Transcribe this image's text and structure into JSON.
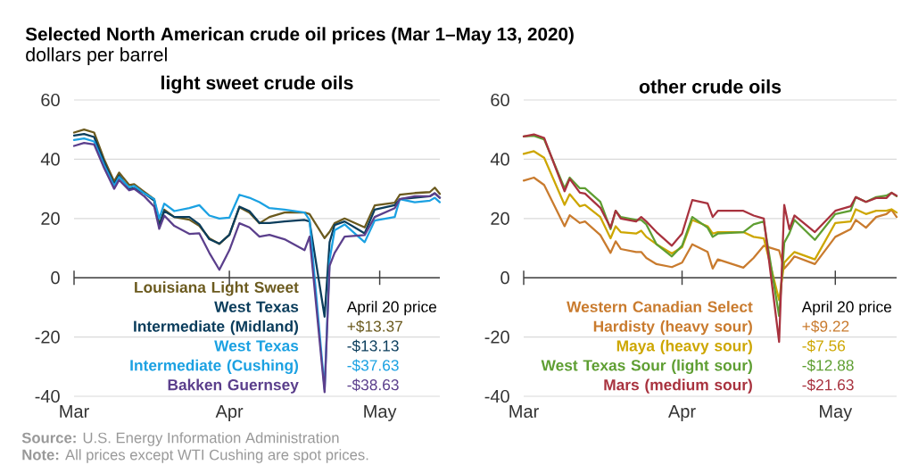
{
  "chart_data": [
    {
      "type": "line",
      "title": "light sweet crude oils",
      "ylabel": "dollars per barrel",
      "x": [
        "2020-03-01",
        "2020-03-03",
        "2020-03-05",
        "2020-03-07",
        "2020-03-09",
        "2020-03-10",
        "2020-03-12",
        "2020-03-13",
        "2020-03-15",
        "2020-03-17",
        "2020-03-18",
        "2020-03-19",
        "2020-03-21",
        "2020-03-24",
        "2020-03-26",
        "2020-03-28",
        "2020-03-30",
        "2020-04-01",
        "2020-04-03",
        "2020-04-05",
        "2020-04-07",
        "2020-04-09",
        "2020-04-12",
        "2020-04-16",
        "2020-04-17",
        "2020-04-20",
        "2020-04-21",
        "2020-04-22",
        "2020-04-24",
        "2020-04-28",
        "2020-04-30",
        "2020-05-04",
        "2020-05-05",
        "2020-05-08",
        "2020-05-11",
        "2020-05-12",
        "2020-05-13"
      ],
      "series": [
        {
          "name": "Louisiana Light Sweet",
          "color": "#6b5a1e",
          "values": [
            49,
            50,
            49,
            40,
            32.5,
            35.5,
            31.3,
            31.6,
            29,
            26.5,
            17.8,
            23,
            20.5,
            19.6,
            17.5,
            13.3,
            11.4,
            14.5,
            23.8,
            22,
            18.4,
            20.5,
            22,
            22,
            21.5,
            13.37,
            15.5,
            18.4,
            20,
            17,
            24.4,
            25.3,
            28,
            28.6,
            28.9,
            30.4,
            28.3
          ]
        },
        {
          "name": "West Texas Intermediate (Midland)",
          "color": "#0b3d5c",
          "values": [
            48,
            48.5,
            47.5,
            39,
            31.5,
            34.5,
            30,
            30.2,
            28.5,
            26,
            17.5,
            22.5,
            20.5,
            20.5,
            18,
            13,
            11.5,
            14.5,
            24,
            22.5,
            18.5,
            18.5,
            19,
            19.5,
            19,
            -13.13,
            12,
            17.8,
            19,
            15,
            23,
            24.5,
            26.5,
            27,
            27.5,
            28.5,
            27
          ]
        },
        {
          "name": "West Texas Intermediate (Cushing)",
          "color": "#1ba1e2",
          "values": [
            46.5,
            47,
            46,
            38,
            31,
            34,
            30.5,
            31,
            28.5,
            26.5,
            20,
            25,
            22.5,
            23.5,
            24.5,
            21,
            20,
            20.3,
            28,
            27,
            25.5,
            23.5,
            23,
            22,
            19.5,
            -37.63,
            6,
            16,
            18,
            12,
            19.3,
            20.5,
            26.5,
            25.5,
            26,
            27,
            25.5
          ]
        },
        {
          "name": "Bakken Guernsey",
          "color": "#5b3f8c",
          "values": [
            44.5,
            45.5,
            45,
            37,
            30,
            33,
            29.5,
            30,
            27.5,
            24,
            16.5,
            21,
            17.5,
            14.8,
            15,
            8.4,
            2.7,
            9.3,
            18.4,
            17,
            13.9,
            14.5,
            13,
            9.3,
            13.9,
            -38.63,
            4,
            8.4,
            13.9,
            14.4,
            20.5,
            23.5,
            26.5,
            27.5,
            27.5,
            28.5,
            27
          ]
        }
      ],
      "xlim": [
        "2020-03-01",
        "2020-05-13"
      ],
      "xticks": [
        {
          "value": "2020-03-01",
          "label": "Mar"
        },
        {
          "value": "2020-04-01",
          "label": "Apr"
        },
        {
          "value": "2020-05-01",
          "label": "May"
        }
      ],
      "ylim": [
        -40,
        60
      ],
      "yticks": [
        -40,
        -20,
        0,
        20,
        40,
        60
      ],
      "grid": "y",
      "legend": "bottom",
      "marker": "none",
      "line_style": "solid",
      "annotations": [
        "April 20 price",
        "+$13.37",
        "-$13.13",
        "-$37.63",
        "-$38.63",
        "Selected North American crude oil prices (Mar 1–May 13, 2020)",
        "**Source:** U.S. Energy Information Administration",
        "**Note:** All prices except WTI Cushing are spot prices."
      ]
    },
    {
      "type": "line",
      "title": "other crude oils",
      "x": [
        "2020-03-01",
        "2020-03-03",
        "2020-03-05",
        "2020-03-09",
        "2020-03-10",
        "2020-03-12",
        "2020-03-13",
        "2020-03-16",
        "2020-03-18",
        "2020-03-19",
        "2020-03-20",
        "2020-03-23",
        "2020-03-24",
        "2020-03-25",
        "2020-03-27",
        "2020-03-30",
        "2020-04-01",
        "2020-04-03",
        "2020-04-06",
        "2020-04-07",
        "2020-04-08",
        "2020-04-13",
        "2020-04-15",
        "2020-04-17",
        "2020-04-20",
        "2020-04-21",
        "2020-04-22",
        "2020-04-23",
        "2020-04-27",
        "2020-05-01",
        "2020-05-04",
        "2020-05-05",
        "2020-05-07",
        "2020-05-09",
        "2020-05-11",
        "2020-05-12",
        "2020-05-13"
      ],
      "series": [
        {
          "name": "Western Canadian Select Hardisty (heavy sour)",
          "color": "#c97b2e",
          "values": [
            32.8,
            33.8,
            31.3,
            17.4,
            21.1,
            18.5,
            19,
            14.4,
            8.4,
            12.3,
            9.7,
            8.7,
            8.7,
            6.7,
            4.6,
            3.6,
            5.1,
            11.3,
            8.7,
            3.1,
            6.2,
            3.4,
            6.7,
            10.8,
            9.22,
            3.1,
            5,
            7.2,
            4.6,
            13.8,
            16.4,
            19.5,
            16.9,
            20.5,
            21.5,
            22.9,
            20.5
          ]
        },
        {
          "name": "Maya (heavy sour)",
          "color": "#cda600",
          "values": [
            41.8,
            42.7,
            40.5,
            24.6,
            28.2,
            24.1,
            24.6,
            20.5,
            13.3,
            17.4,
            15.4,
            14.9,
            15.9,
            13.8,
            11.3,
            8.2,
            10.3,
            19.5,
            17.4,
            14.9,
            15.4,
            15.4,
            13.8,
            13.3,
            -7.56,
            5.1,
            7,
            8.7,
            6.2,
            18.5,
            19,
            23.1,
            21.5,
            22.6,
            22.6,
            23.1,
            22
          ]
        },
        {
          "name": "West Texas Sour (light sour)",
          "color": "#5e9e32",
          "values": [
            47.7,
            47.9,
            46.7,
            30.2,
            33.8,
            30.2,
            30.2,
            25.6,
            16.4,
            22.6,
            20.5,
            19.5,
            19.5,
            18,
            11.3,
            7.2,
            10.8,
            20.5,
            16.9,
            13.8,
            14.9,
            15.4,
            18,
            19,
            -12.88,
            11.8,
            15,
            19.5,
            12.8,
            21.5,
            22.6,
            27.2,
            25.6,
            27.2,
            27.7,
            28.7,
            27.5
          ]
        },
        {
          "name": "Mars (medium sour)",
          "color": "#a8323e",
          "values": [
            47.7,
            48.4,
            47.2,
            29.2,
            33.4,
            28.7,
            28.4,
            23.6,
            16.9,
            22.6,
            20,
            19,
            20.5,
            19,
            15.4,
            10.8,
            14.9,
            26.2,
            25.1,
            20.5,
            22.6,
            22.6,
            21,
            20,
            -21.63,
            24.6,
            16.4,
            21,
            15.4,
            22.6,
            24.1,
            27.2,
            25.6,
            26.9,
            26.9,
            28.7,
            27.7
          ]
        }
      ],
      "xlim": [
        "2020-03-01",
        "2020-05-13"
      ],
      "xticks": [
        {
          "value": "2020-03-01",
          "label": "Mar"
        },
        {
          "value": "2020-04-01",
          "label": "Apr"
        },
        {
          "value": "2020-05-01",
          "label": "May"
        }
      ],
      "ylim": [
        -40,
        60
      ],
      "yticks": [
        -40,
        -20,
        0,
        20,
        40,
        60
      ],
      "grid": "y",
      "legend": "bottom",
      "marker": "none",
      "line_style": "solid",
      "annotations": [
        "April 20 price",
        "+$9.22",
        "-$7.56",
        "-$12.88",
        "-$21.63"
      ]
    }
  ]
}
